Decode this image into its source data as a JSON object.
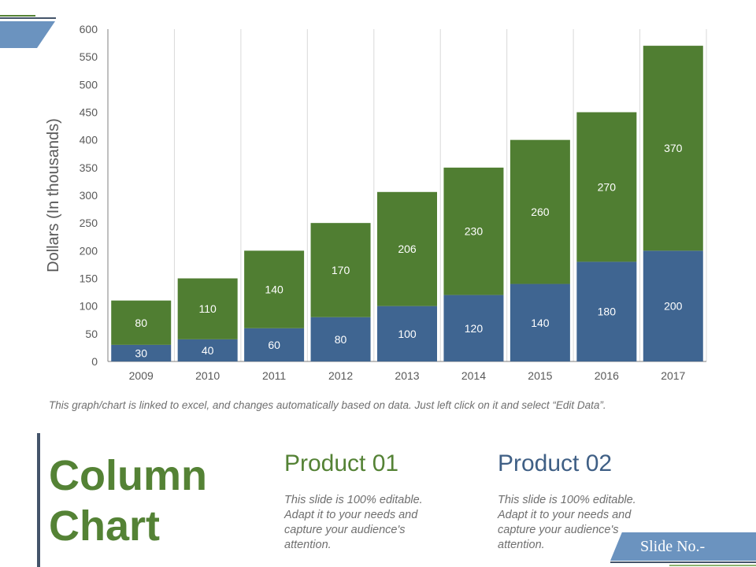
{
  "chart_data": {
    "type": "bar",
    "stacked": true,
    "categories": [
      "2009",
      "2010",
      "2011",
      "2012",
      "2013",
      "2014",
      "2015",
      "2016",
      "2017"
    ],
    "series": [
      {
        "values": [
          30,
          40,
          60,
          80,
          100,
          120,
          140,
          180,
          200
        ],
        "color": "#3f6591"
      },
      {
        "values": [
          80,
          110,
          140,
          170,
          206,
          230,
          260,
          270,
          370
        ],
        "color": "#507e32"
      }
    ],
    "ylabel": "Dollars (In thousands)",
    "ylim": [
      0,
      600
    ],
    "yticks": [
      0,
      50,
      100,
      150,
      200,
      250,
      300,
      350,
      400,
      450,
      500,
      550,
      600
    ],
    "grid": "vertical"
  },
  "note": "This graph/chart is linked to excel, and changes automatically based on data. Just left click on it and select “Edit Data”.",
  "title": "Column Chart",
  "products": [
    {
      "heading": "Product 01",
      "text": "This slide is 100% editable. Adapt it to your needs and capture your audience's attention.",
      "color": "#548235"
    },
    {
      "heading": "Product 02",
      "text": "This slide is 100% editable. Adapt it to your needs and capture your audience's attention.",
      "color": "#3f5f85"
    }
  ],
  "slide_no": "Slide No.-"
}
